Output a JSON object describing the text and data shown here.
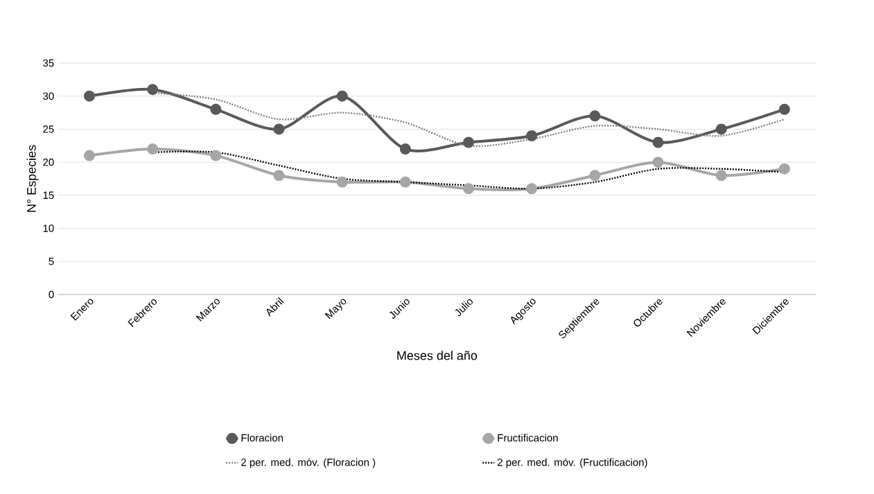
{
  "chart_data": {
    "type": "line",
    "xlabel": "Meses del año",
    "ylabel": "N° Especies",
    "categories": [
      "Enero",
      "Febrero",
      "Marzo",
      "Abril",
      "Mayo",
      "Junio",
      "Julio",
      "Agosto",
      "Septiembre",
      "Octubre",
      "Noviembre",
      "Diciembre"
    ],
    "series": [
      {
        "name": "Floracion",
        "color": "#595959",
        "marker": "circle",
        "line_style": "solid",
        "values": [
          30,
          31,
          28,
          25,
          30,
          22,
          23,
          24,
          27,
          23,
          25,
          28
        ]
      },
      {
        "name": "Fructificacion",
        "color": "#a6a6a6",
        "marker": "circle",
        "line_style": "solid",
        "values": [
          21,
          22,
          21,
          18,
          17,
          17,
          16,
          16,
          18,
          20,
          18,
          19
        ]
      },
      {
        "name": "2 per. med. móv. (Floracion )",
        "color": "#7f7f7f",
        "marker": "none",
        "line_style": "dotted",
        "values": [
          null,
          30.5,
          29.5,
          26.5,
          27.5,
          26,
          22.5,
          23.5,
          25.5,
          25,
          24,
          26.5
        ]
      },
      {
        "name": "2 per. med. móv. (Fructificacion)",
        "color": "#000000",
        "marker": "none",
        "line_style": "dotted",
        "values": [
          null,
          21.5,
          21.5,
          19.5,
          17.5,
          17,
          16.5,
          16,
          17,
          19,
          19,
          18.5
        ]
      }
    ],
    "ylim": [
      0,
      35
    ],
    "yticks": [
      0,
      5,
      10,
      15,
      20,
      25,
      30,
      35
    ],
    "grid": "y",
    "legend": "bottom"
  }
}
